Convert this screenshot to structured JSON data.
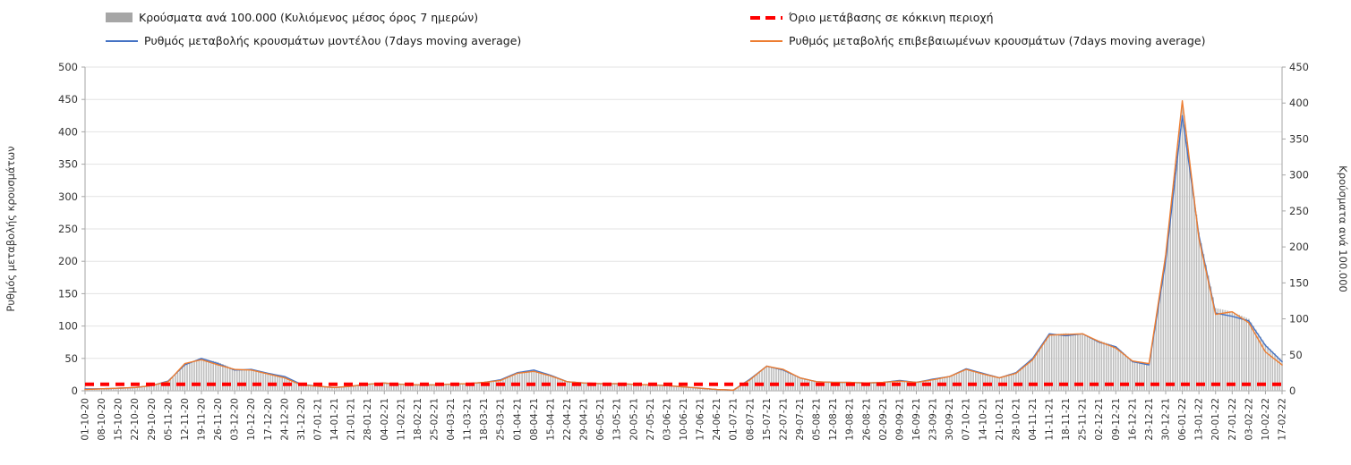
{
  "legend": {
    "bars": "Κρούσματα ανά 100.000 (Κυλιόμενος μέσος όρος 7 ημερών)",
    "threshold": "Όριο μετάβασης σε κόκκινη περιοχή",
    "model": "Ρυθμός μεταβολής κρουσμάτων μοντέλου (7days moving average)",
    "confirmed": "Ρυθμός μεταβολής επιβεβαιωμένων κρουσμάτων (7days moving average)"
  },
  "colors": {
    "bar": "#bdbdbd",
    "model": "#4472c4",
    "confirmed": "#ed7d31",
    "threshold": "#ff0000",
    "grid": "#e3e3e3",
    "axis": "#a6a6a6",
    "text": "#333333"
  },
  "chart_data": {
    "type": "combo",
    "legend_position": "top",
    "grid": true,
    "categories": [
      "01-10-20",
      "08-10-20",
      "15-10-20",
      "22-10-20",
      "29-10-20",
      "05-11-20",
      "12-11-20",
      "19-11-20",
      "26-11-20",
      "03-12-20",
      "10-12-20",
      "17-12-20",
      "24-12-20",
      "31-12-20",
      "07-01-21",
      "14-01-21",
      "21-01-21",
      "28-01-21",
      "04-02-21",
      "11-02-21",
      "18-02-21",
      "25-02-21",
      "04-03-21",
      "11-03-21",
      "18-03-21",
      "25-03-21",
      "01-04-21",
      "08-04-21",
      "15-04-21",
      "22-04-21",
      "29-04-21",
      "06-05-21",
      "13-05-21",
      "20-05-21",
      "27-05-21",
      "03-06-21",
      "10-06-21",
      "17-06-21",
      "24-06-21",
      "01-07-21",
      "08-07-21",
      "15-07-21",
      "22-07-21",
      "29-07-21",
      "05-08-21",
      "12-08-21",
      "19-08-21",
      "26-08-21",
      "02-09-21",
      "09-09-21",
      "16-09-21",
      "23-09-21",
      "30-09-21",
      "07-10-21",
      "14-10-21",
      "21-10-21",
      "28-10-21",
      "04-11-21",
      "11-11-21",
      "18-11-21",
      "25-11-21",
      "02-12-21",
      "09-12-21",
      "16-12-21",
      "23-12-21",
      "30-12-21",
      "06-01-22",
      "13-01-22",
      "20-01-22",
      "27-01-22",
      "03-02-22",
      "10-02-22",
      "17-02-22"
    ],
    "series": [
      {
        "name": "Κρούσματα ανά 100.000 (Κυλιόμενος μέσος όρος 7 ημερών)",
        "type": "bar",
        "axis": "right",
        "color": "#bdbdbd",
        "values": [
          2,
          3,
          4,
          5,
          7,
          12,
          35,
          45,
          40,
          30,
          30,
          25,
          18,
          8,
          6,
          5,
          6,
          8,
          10,
          9,
          8,
          8,
          9,
          10,
          12,
          15,
          25,
          28,
          22,
          13,
          11,
          10,
          10,
          9,
          8,
          7,
          5,
          4,
          2,
          1,
          15,
          35,
          30,
          18,
          13,
          12,
          12,
          11,
          12,
          14,
          12,
          16,
          20,
          30,
          25,
          18,
          25,
          45,
          78,
          80,
          78,
          70,
          62,
          42,
          38,
          180,
          395,
          220,
          115,
          110,
          100,
          65,
          42
        ]
      },
      {
        "name": "Ρυθμός μεταβολής κρουσμάτων μοντέλου (7days moving average)",
        "type": "line",
        "axis": "left",
        "color": "#4472c4",
        "values": [
          3,
          3,
          4,
          5,
          8,
          15,
          40,
          50,
          42,
          32,
          33,
          27,
          22,
          10,
          7,
          5,
          7,
          10,
          12,
          10,
          9,
          9,
          10,
          11,
          13,
          17,
          28,
          32,
          24,
          14,
          12,
          11,
          11,
          10,
          9,
          8,
          6,
          4,
          2,
          1,
          18,
          38,
          32,
          20,
          14,
          13,
          13,
          12,
          13,
          16,
          13,
          18,
          22,
          34,
          27,
          20,
          28,
          50,
          88,
          85,
          88,
          75,
          68,
          45,
          40,
          200,
          425,
          240,
          120,
          115,
          108,
          70,
          45
        ]
      },
      {
        "name": "Ρυθμός μεταβολής επιβεβαιωμένων κρουσμάτων (7days moving average)",
        "type": "line",
        "axis": "left",
        "color": "#ed7d31",
        "values": [
          2,
          3,
          4,
          5,
          8,
          14,
          42,
          48,
          40,
          33,
          32,
          26,
          20,
          9,
          7,
          5,
          7,
          10,
          12,
          10,
          9,
          9,
          10,
          11,
          13,
          16,
          27,
          30,
          23,
          14,
          12,
          11,
          11,
          10,
          9,
          8,
          6,
          4,
          2,
          1,
          17,
          38,
          33,
          20,
          14,
          13,
          13,
          12,
          13,
          15,
          13,
          17,
          22,
          33,
          26,
          20,
          27,
          48,
          86,
          87,
          88,
          76,
          66,
          46,
          42,
          210,
          448,
          235,
          118,
          122,
          105,
          60,
          40
        ]
      }
    ],
    "threshold": {
      "name": "Όριο μετάβασης σε κόκκινη περιοχή",
      "axis": "left",
      "value": 10
    },
    "left_axis": {
      "label": "Ρυθμός μεταβολής κρουσμάτων",
      "min": 0,
      "max": 500,
      "step": 50
    },
    "right_axis": {
      "label": "Κρούσματα ανά 100.000",
      "min": 0,
      "max": 450,
      "step": 50
    }
  }
}
